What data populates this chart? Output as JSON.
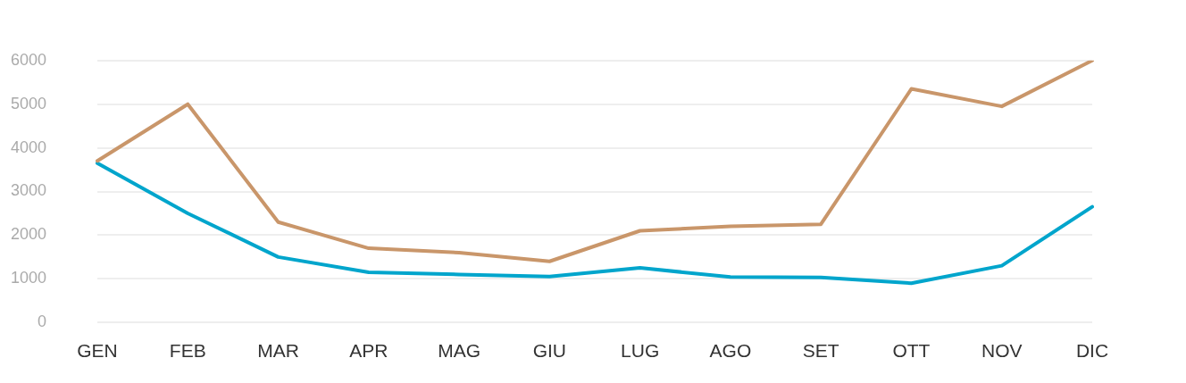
{
  "chart_data": {
    "type": "line",
    "categories": [
      "GEN",
      "FEB",
      "MAR",
      "APR",
      "MAG",
      "GIU",
      "LUG",
      "AGO",
      "SET",
      "OTT",
      "NOV",
      "DIC"
    ],
    "series": [
      {
        "color": "#c9966a",
        "values": [
          3700,
          5000,
          2300,
          1700,
          1600,
          1400,
          2100,
          2200,
          2250,
          5350,
          4950,
          6000
        ]
      },
      {
        "color": "#00a5cc",
        "values": [
          3650,
          2500,
          1500,
          1150,
          1100,
          1050,
          1250,
          1040,
          1030,
          900,
          1300,
          2650
        ]
      }
    ],
    "ylim": [
      0,
      6000
    ],
    "yticks": [
      0,
      1000,
      2000,
      3000,
      4000,
      5000,
      6000
    ],
    "grid": "y",
    "legend": false,
    "marker": "none",
    "line_style": "solid"
  }
}
